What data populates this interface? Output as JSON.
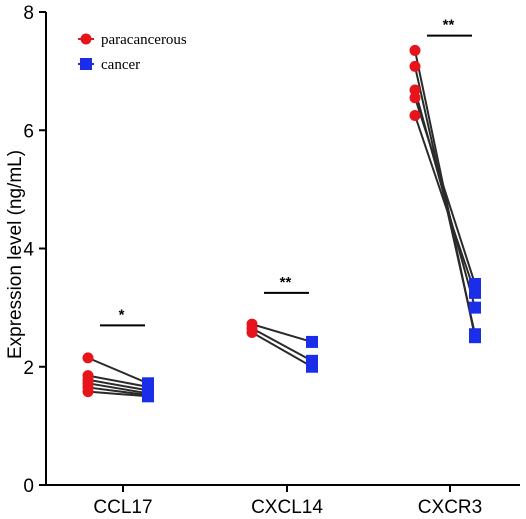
{
  "chart_data": {
    "type": "scatter",
    "ylabel": "Expression level (ng/mL)",
    "xlabel": "",
    "title": "",
    "ylim": [
      0,
      8
    ],
    "yticks": [
      "0",
      "2",
      "4",
      "6",
      "8"
    ],
    "categories": [
      "CCL17",
      "CXCL14",
      "CXCR3"
    ],
    "legend": {
      "position": "top-left",
      "entries": [
        {
          "name": "paracancerous",
          "color": "#e8141c",
          "marker": "circle"
        },
        {
          "name": "cancer",
          "color": "#1a2de8",
          "marker": "square"
        }
      ]
    },
    "series": [
      {
        "name": "paracancerous",
        "color": "#e8141c",
        "values": [
          [
            2.15,
            1.85,
            1.78,
            1.72,
            1.65,
            1.58
          ],
          [
            2.72,
            2.65,
            2.58
          ],
          [
            7.35,
            7.08,
            6.68,
            6.55,
            6.25
          ]
        ]
      },
      {
        "name": "cancer",
        "color": "#1a2de8",
        "values": [
          [
            1.72,
            1.66,
            1.6,
            1.55,
            1.52,
            1.5
          ],
          [
            2.42,
            2.1,
            2.0
          ],
          [
            2.5,
            2.55,
            3.0,
            3.4,
            3.25
          ]
        ]
      }
    ],
    "significance": [
      "*",
      "**",
      "**"
    ]
  }
}
